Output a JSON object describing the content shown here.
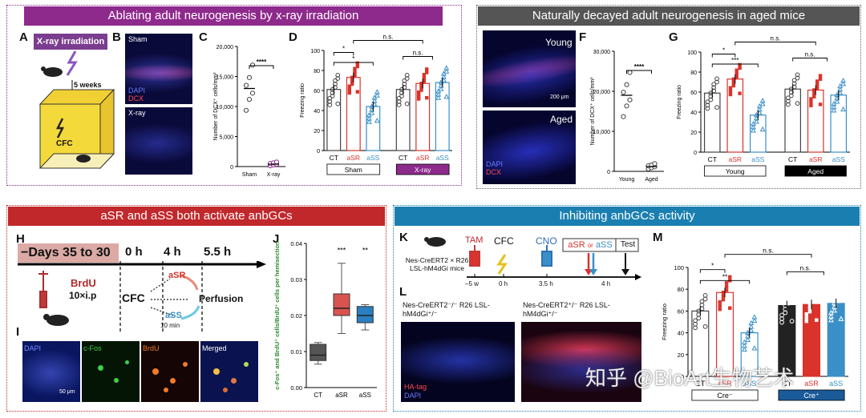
{
  "sections": {
    "top_left": {
      "title": "Ablating adult neurogenesis by x-ray irradiation",
      "color": "#8e2a8c"
    },
    "top_right": {
      "title": "Naturally decayed adult neurogenesis in aged mice",
      "color": "#555555"
    },
    "bottom_left": {
      "title": "aSR and aSS both activate anbGCs",
      "color": "#c0282b"
    },
    "bottom_right": {
      "title": "Inhibiting anbGCs activity",
      "color": "#1a7fb0"
    }
  },
  "panel_labels": [
    "A",
    "B",
    "C",
    "D",
    "E",
    "F",
    "G",
    "H",
    "I",
    "J",
    "K",
    "L",
    "M"
  ],
  "panel_a": {
    "title": "X-ray irradiation",
    "duration": "5 weeks",
    "box_label": "CFC"
  },
  "panel_b": {
    "top": "Sham",
    "bottom": "X-ray",
    "dapi": "DAPI",
    "dcx": "DCX"
  },
  "panel_c": {
    "ylabel": "Number of DCX⁺ cells/mm³",
    "ticks": [
      "0",
      "5,000",
      "10,000",
      "15,000",
      "20,000"
    ],
    "categories": [
      "Sham",
      "X-ray"
    ],
    "sig": "****"
  },
  "panel_d": {
    "ylabel": "Freezing ratio",
    "ticks": [
      "0",
      "20",
      "40",
      "60",
      "80",
      "100"
    ],
    "categories": [
      "CT",
      "aSR",
      "aSS",
      "CT",
      "aSR",
      "aSS"
    ],
    "groups": [
      "Sham",
      "X-ray"
    ],
    "sig": [
      "*",
      "*",
      "n.s.",
      "n.s."
    ]
  },
  "panel_e": {
    "top": "Young",
    "bottom": "Aged",
    "dapi": "DAPI",
    "dcx": "DCX",
    "scale": "200 μm"
  },
  "panel_f": {
    "ylabel": "Number of DCX⁺ cells/mm³",
    "ticks": [
      "0",
      "10,000",
      "20,000",
      "30,000"
    ],
    "categories": [
      "Young",
      "Aged"
    ],
    "sig": "****"
  },
  "panel_g": {
    "ylabel": "Freezing ratio",
    "ticks": [
      "0",
      "20",
      "40",
      "60",
      "80",
      "100"
    ],
    "categories": [
      "CT",
      "aSR",
      "aSS",
      "CT",
      "aSR",
      "aSS"
    ],
    "groups": [
      "Young",
      "Aged"
    ],
    "sig": [
      "*",
      "***",
      "n.s.",
      "n.s."
    ]
  },
  "panel_h": {
    "days": "−Days 35 to 30",
    "t0": "0 h",
    "t1": "4 h",
    "t2": "5.5 h",
    "brdu": "BrdU",
    "dose": "10×i.p",
    "cfc": "CFC",
    "asr": "aSR",
    "ass": "aSS",
    "perfusion": "Perfusion",
    "interval": "10 min"
  },
  "panel_i": {
    "labels": [
      "DAPI",
      "c-Fos",
      "BrdU",
      "Merged"
    ],
    "scale": "50 μm"
  },
  "panel_j": {
    "ylabel": "c-Fos⁺ and BrdU⁺ cells/BrdU⁺ cells per hemisection",
    "ticks": [
      "0.00",
      "0.01",
      "0.02",
      "0.03",
      "0.04"
    ],
    "categories": [
      "CT",
      "aSR",
      "aSS"
    ],
    "sig": [
      "***",
      "**"
    ]
  },
  "panel_k": {
    "mouse": "Nes-CreERT2 × R26 LSL-hM4dGi mice",
    "tam": "TAM",
    "cfc": "CFC",
    "cno": "CNO",
    "asr": "aSR",
    "or": "or",
    "ass": "aSS",
    "test": "Test",
    "times": [
      "–5 w",
      "0 h",
      "3.5 h",
      "4 h"
    ]
  },
  "panel_l": {
    "left": "Nes-CreERT2⁻/⁻ R26 LSL-hM4dGi⁺/⁻",
    "right": "Nes-CreERT2⁺/⁻ R26 LSL-hM4dGi⁺/⁻",
    "hatag": "HA-tag",
    "dapi": "DAPI"
  },
  "panel_m": {
    "ylabel": "Freezing ratio",
    "ticks": [
      "0",
      "20",
      "40",
      "60",
      "80",
      "100"
    ],
    "categories": [
      "CT",
      "aSR",
      "aSS",
      "CT",
      "aSR",
      "aSS"
    ],
    "groups": [
      "Cre⁻",
      "Cre⁺"
    ],
    "sig": [
      "*",
      "**",
      "n.s.",
      "n.s."
    ]
  },
  "watermark": "知乎 @BioArt生物艺术",
  "chart_data": [
    {
      "type": "scatter",
      "panel": "C",
      "categories": [
        "Sham",
        "X-ray"
      ],
      "means": [
        13000,
        400
      ],
      "ylim": [
        0,
        20000
      ]
    },
    {
      "type": "bar",
      "panel": "D",
      "categories": [
        "CT",
        "aSR",
        "aSS",
        "CT",
        "aSR",
        "aSS"
      ],
      "values": [
        61,
        73,
        44,
        61,
        67,
        68
      ],
      "ylim": [
        0,
        100
      ],
      "colors": [
        "#444444",
        "#d9332b",
        "#3a8fc7",
        "#444444",
        "#d9332b",
        "#3a8fc7"
      ]
    },
    {
      "type": "scatter",
      "panel": "F",
      "categories": [
        "Young",
        "Aged"
      ],
      "means": [
        19000,
        1200
      ],
      "ylim": [
        0,
        30000
      ]
    },
    {
      "type": "bar",
      "panel": "G",
      "categories": [
        "CT",
        "aSR",
        "aSS",
        "CT",
        "aSR",
        "aSS"
      ],
      "values": [
        59,
        73,
        37,
        63,
        62,
        57
      ],
      "ylim": [
        0,
        100
      ],
      "colors": [
        "#444444",
        "#d9332b",
        "#3a8fc7",
        "#444444",
        "#d9332b",
        "#3a8fc7"
      ]
    },
    {
      "type": "box",
      "panel": "J",
      "categories": [
        "CT",
        "aSR",
        "aSS"
      ],
      "median": [
        0.009,
        0.022,
        0.02
      ],
      "q1": [
        0.0075,
        0.02,
        0.018
      ],
      "q3": [
        0.012,
        0.026,
        0.0225
      ],
      "min": [
        0.0065,
        0.015,
        0.016
      ],
      "max": [
        0.0125,
        0.0345,
        0.023
      ],
      "ylim": [
        0,
        0.04
      ]
    },
    {
      "type": "bar",
      "panel": "M",
      "categories": [
        "CT",
        "aSR",
        "aSS",
        "CT",
        "aSR",
        "aSS"
      ],
      "values": [
        60,
        77,
        40,
        65,
        66,
        67
      ],
      "ylim": [
        0,
        100
      ],
      "colors": [
        "#444444",
        "#d9332b",
        "#3a8fc7",
        "#222222",
        "#d9332b",
        "#3a8fc7"
      ]
    }
  ]
}
